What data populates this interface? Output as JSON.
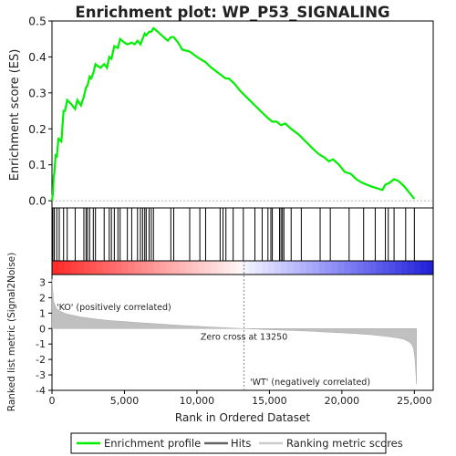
{
  "chart_data": {
    "type": "line",
    "title": "Enrichment plot: WP_P53_SIGNALING",
    "top_panel": {
      "ylabel": "Enrichment score (ES)",
      "ylim": [
        -0.02,
        0.5
      ],
      "yticks": [
        "0.0",
        "0.1",
        "0.2",
        "0.3",
        "0.4",
        "0.5"
      ],
      "ytick_values": [
        0.0,
        0.1,
        0.2,
        0.3,
        0.4,
        0.5
      ],
      "series": [
        {
          "name": "Enrichment profile",
          "color": "#00ee00",
          "x": [
            0,
            60,
            120,
            160,
            260,
            330,
            450,
            500,
            650,
            800,
            900,
            1050,
            1300,
            1600,
            1750,
            2000,
            2200,
            2350,
            2450,
            2600,
            2700,
            2850,
            3000,
            3150,
            3350,
            3600,
            3800,
            3950,
            4100,
            4300,
            4550,
            4700,
            5000,
            5200,
            5500,
            5700,
            5900,
            6100,
            6250,
            6400,
            6500,
            6700,
            6850,
            7000,
            7300,
            7700,
            8000,
            8200,
            8400,
            8700,
            9000,
            9500,
            10000,
            10600,
            11000,
            11500,
            12000,
            12200,
            12600,
            13000,
            13500,
            14000,
            14500,
            14900,
            15200,
            15500,
            15800,
            16100,
            16500,
            17000,
            17500,
            18000,
            18400,
            18800,
            19100,
            19400,
            19800,
            20200,
            20600,
            21000,
            21400,
            21700,
            22000,
            22400,
            22800,
            23000,
            23300,
            23600,
            23900,
            24300,
            24700,
            25000
          ],
          "y": [
            0.0,
            0.02,
            0.07,
            0.075,
            0.13,
            0.12,
            0.175,
            0.17,
            0.165,
            0.25,
            0.25,
            0.28,
            0.27,
            0.255,
            0.28,
            0.265,
            0.29,
            0.315,
            0.32,
            0.345,
            0.34,
            0.355,
            0.38,
            0.375,
            0.37,
            0.38,
            0.37,
            0.4,
            0.395,
            0.43,
            0.425,
            0.45,
            0.44,
            0.435,
            0.44,
            0.435,
            0.445,
            0.435,
            0.45,
            0.465,
            0.46,
            0.47,
            0.47,
            0.48,
            0.47,
            0.455,
            0.445,
            0.455,
            0.455,
            0.44,
            0.42,
            0.415,
            0.4,
            0.385,
            0.37,
            0.355,
            0.34,
            0.34,
            0.325,
            0.305,
            0.285,
            0.265,
            0.245,
            0.23,
            0.22,
            0.22,
            0.21,
            0.215,
            0.2,
            0.185,
            0.165,
            0.145,
            0.13,
            0.12,
            0.11,
            0.115,
            0.1,
            0.08,
            0.075,
            0.06,
            0.05,
            0.045,
            0.04,
            0.035,
            0.03,
            0.045,
            0.05,
            0.06,
            0.055,
            0.04,
            0.02,
            0.005
          ]
        }
      ]
    },
    "hits": [
      60,
      160,
      330,
      500,
      800,
      1050,
      1600,
      2200,
      2350,
      2450,
      2600,
      2850,
      3000,
      3600,
      3950,
      4100,
      4300,
      4550,
      4700,
      5200,
      5500,
      5900,
      6100,
      6250,
      6400,
      6500,
      6700,
      6850,
      7000,
      8200,
      8400,
      9500,
      10200,
      10600,
      11600,
      11800,
      12000,
      12500,
      13200,
      14000,
      14500,
      14900,
      15100,
      15200,
      15700,
      15800,
      15900,
      16000,
      16500,
      17200,
      18500,
      19200,
      20500,
      21500,
      22300,
      23000,
      23200,
      23600,
      24400,
      25000
    ],
    "bottom_panel": {
      "ylabel": "Ranked list metric (Signal2Noise)",
      "ylim": [
        -4,
        3.5
      ],
      "yticks": [
        "-4",
        "-3",
        "-2",
        "-1",
        "0",
        "1",
        "2",
        "3"
      ],
      "ytick_values": [
        -4,
        -3,
        -2,
        -1,
        0,
        1,
        2,
        3
      ],
      "xlabel": "Rank in Ordered Dataset",
      "xlim": [
        0,
        26300
      ],
      "xticks": [
        "0",
        "5,000",
        "10,000",
        "15,000",
        "20,000",
        "25,000"
      ],
      "xtick_values": [
        0,
        5000,
        10000,
        15000,
        20000,
        25000
      ],
      "metric_x": [
        0,
        100,
        300,
        600,
        1000,
        1500,
        2000,
        3000,
        4000,
        5000,
        6000,
        7000,
        8000,
        9000,
        10000,
        11000,
        12000,
        13250,
        14000,
        15000,
        16000,
        17000,
        18000,
        19000,
        20000,
        21000,
        22000,
        23000,
        23800,
        24300,
        24600,
        24800,
        24950,
        25050,
        25150
      ],
      "metric_y": [
        3.2,
        1.8,
        1.3,
        1.1,
        0.95,
        0.85,
        0.75,
        0.62,
        0.52,
        0.45,
        0.38,
        0.32,
        0.26,
        0.2,
        0.15,
        0.1,
        0.05,
        0.0,
        -0.03,
        -0.07,
        -0.1,
        -0.14,
        -0.18,
        -0.23,
        -0.28,
        -0.33,
        -0.4,
        -0.5,
        -0.6,
        -0.7,
        -0.85,
        -1.0,
        -1.3,
        -2.0,
        -3.6
      ],
      "zero_cross_label": "Zero cross at 13250",
      "zero_cross": 13250,
      "pos_label": "'KO' (positively correlated)",
      "neg_label": "'WT' (negatively correlated)"
    },
    "legend": {
      "items": [
        {
          "label": "Enrichment profile",
          "color": "#00ee00"
        },
        {
          "label": "Hits",
          "color": "#666666"
        },
        {
          "label": "Ranking metric scores",
          "color": "#cccccc"
        }
      ],
      "placement": "bottom"
    },
    "colors": {
      "profile": "#00ee00",
      "metric_fill": "#c0c0c0",
      "pos_text": "#dd2222",
      "neg_text": "#3333cc"
    }
  }
}
